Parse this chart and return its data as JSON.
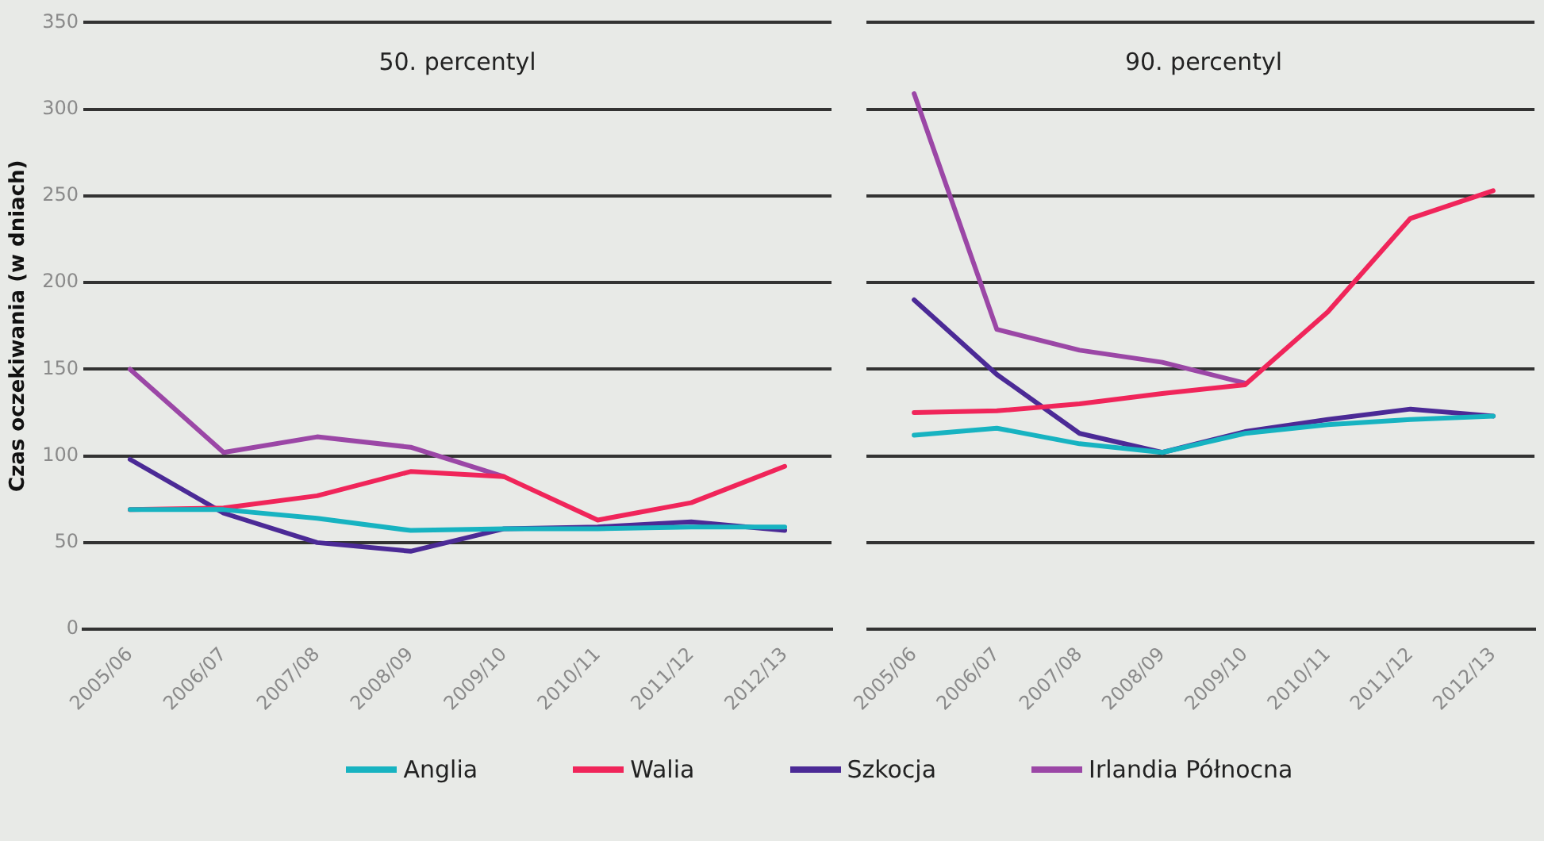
{
  "chart_data": [
    {
      "type": "line",
      "title": "50. percentyl",
      "ylabel": "Czas oczekiwania (w dniach)",
      "categories": [
        "2005/06",
        "2006/07",
        "2007/08",
        "2008/09",
        "2009/10",
        "2010/11",
        "2011/12",
        "2012/13"
      ],
      "ylim": [
        0,
        350
      ],
      "yticks": [
        0,
        50,
        100,
        150,
        200,
        250,
        300,
        350
      ],
      "grid": "y",
      "legend": "bottom",
      "marker": "none",
      "series": [
        {
          "name": "Anglia",
          "color": "#17b3c1",
          "values": [
            69,
            69,
            64,
            57,
            58,
            58,
            59,
            59
          ]
        },
        {
          "name": "Walia",
          "color": "#f0255a",
          "values": [
            69,
            70,
            77,
            91,
            88,
            63,
            73,
            94
          ]
        },
        {
          "name": "Szkocja",
          "color": "#4b2a96",
          "values": [
            98,
            67,
            50,
            45,
            58,
            59,
            62,
            57
          ]
        },
        {
          "name": "Irlandia Północna",
          "color": "#9b47a6",
          "values": [
            150,
            102,
            111,
            105,
            88,
            null,
            null,
            null
          ]
        }
      ]
    },
    {
      "type": "line",
      "title": "90. percentyl",
      "categories": [
        "2005/06",
        "2006/07",
        "2007/08",
        "2008/09",
        "2009/10",
        "2010/11",
        "2011/12",
        "2012/13"
      ],
      "ylim": [
        0,
        350
      ],
      "yticks": [
        0,
        50,
        100,
        150,
        200,
        250,
        300,
        350
      ],
      "grid": "y",
      "tick_labels": "x",
      "marker": "none",
      "series": [
        {
          "color": "#17b3c1",
          "values": [
            112,
            116,
            107,
            102,
            113,
            118,
            121,
            123
          ]
        },
        {
          "color": "#f0255a",
          "values": [
            125,
            126,
            130,
            136,
            141,
            183,
            237,
            253
          ]
        },
        {
          "color": "#4b2a96",
          "values": [
            190,
            147,
            113,
            102,
            114,
            121,
            127,
            123
          ]
        },
        {
          "color": "#9b47a6",
          "values": [
            309,
            173,
            161,
            154,
            142,
            null,
            null,
            null
          ]
        }
      ]
    }
  ]
}
